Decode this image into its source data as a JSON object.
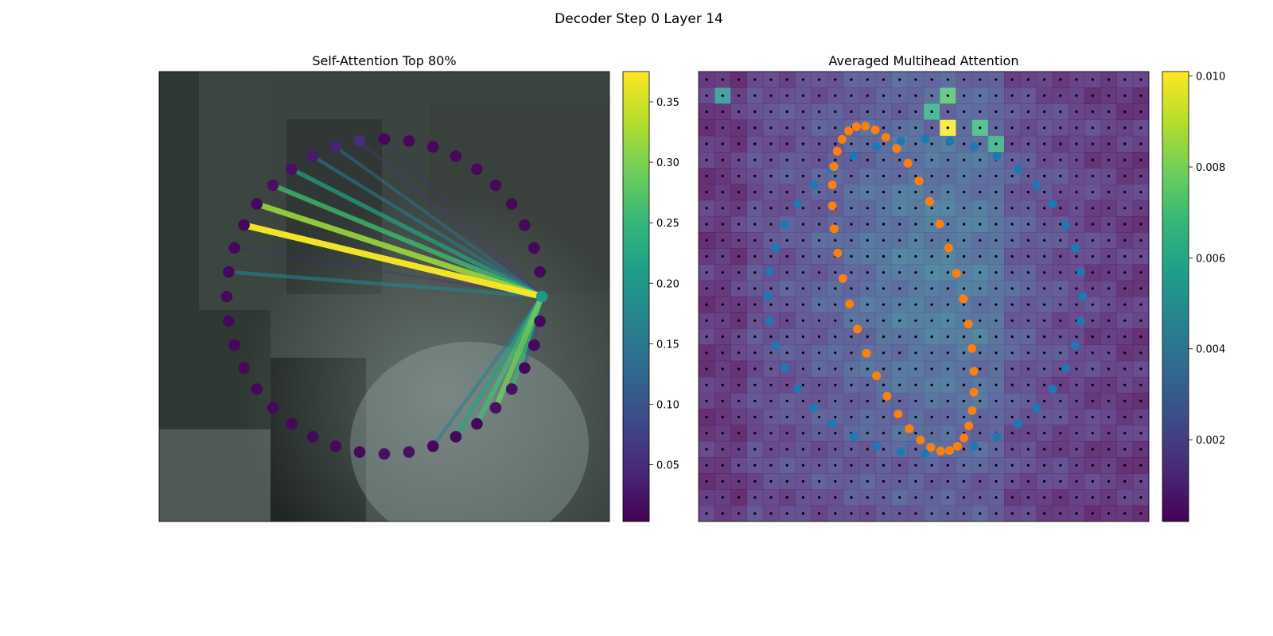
{
  "figure": {
    "title": "Decoder Step 0 Layer 14"
  },
  "colormap": [
    "#440154",
    "#482878",
    "#3e4989",
    "#31688e",
    "#26828e",
    "#1f9e89",
    "#35b779",
    "#6ece58",
    "#b5de2b",
    "#fde725"
  ],
  "point_colors": {
    "blue": "#1f77b4",
    "orange": "#ff7f0e"
  },
  "chart_data": [
    {
      "type": "network",
      "title": "Self-Attention Top 80%",
      "background": "blurred photo (grey/teal tones)",
      "node_count": 40,
      "query_node": 0,
      "colorbar": {
        "min": 0.003,
        "max": 0.375,
        "ticks": [
          0.05,
          0.1,
          0.15,
          0.2,
          0.25,
          0.3,
          0.35
        ]
      },
      "node_values": [
        0.2,
        0.01,
        0.01,
        0.01,
        0.01,
        0.01,
        0.01,
        0.01,
        0.01,
        0.01,
        0.01,
        0.05,
        0.04,
        0.03,
        0.02,
        0.02,
        0.01,
        0.01,
        0.01,
        0.01,
        0.01,
        0.01,
        0.01,
        0.01,
        0.01,
        0.01,
        0.01,
        0.01,
        0.01,
        0.01,
        0.02,
        0.02,
        0.01,
        0.01,
        0.01,
        0.02,
        0.02,
        0.01,
        0.01,
        0.01
      ],
      "edges": [
        {
          "to": 10,
          "value": 0.06
        },
        {
          "to": 11,
          "value": 0.07
        },
        {
          "to": 12,
          "value": 0.14
        },
        {
          "to": 13,
          "value": 0.16
        },
        {
          "to": 14,
          "value": 0.22
        },
        {
          "to": 15,
          "value": 0.26
        },
        {
          "to": 16,
          "value": 0.32
        },
        {
          "to": 17,
          "value": 0.37
        },
        {
          "to": 18,
          "value": 0.05
        },
        {
          "to": 19,
          "value": 0.17
        },
        {
          "to": 32,
          "value": 0.16
        },
        {
          "to": 33,
          "value": 0.22
        },
        {
          "to": 34,
          "value": 0.26
        },
        {
          "to": 35,
          "value": 0.29
        },
        {
          "to": 36,
          "value": 0.25
        },
        {
          "to": 37,
          "value": 0.12
        },
        {
          "to": 38,
          "value": 0.05
        }
      ]
    },
    {
      "type": "heatmap",
      "title": "Averaged Multihead Attention",
      "rows": 28,
      "cols": 28,
      "colorbar": {
        "min": 0.0002,
        "max": 0.0101,
        "ticks": [
          0.002,
          0.004,
          0.006,
          0.008,
          0.01
        ]
      },
      "hotspots": [
        {
          "row": 1,
          "col": 15,
          "value": 0.0072
        },
        {
          "row": 1,
          "col": 1,
          "value": 0.005
        },
        {
          "row": 3,
          "col": 15,
          "value": 0.01
        },
        {
          "row": 2,
          "col": 14,
          "value": 0.0062
        },
        {
          "row": 3,
          "col": 17,
          "value": 0.0068
        },
        {
          "row": 4,
          "col": 18,
          "value": 0.0062
        }
      ],
      "series": [
        {
          "color": "blue",
          "count": 40
        },
        {
          "color": "orange",
          "count": 40
        }
      ]
    }
  ]
}
